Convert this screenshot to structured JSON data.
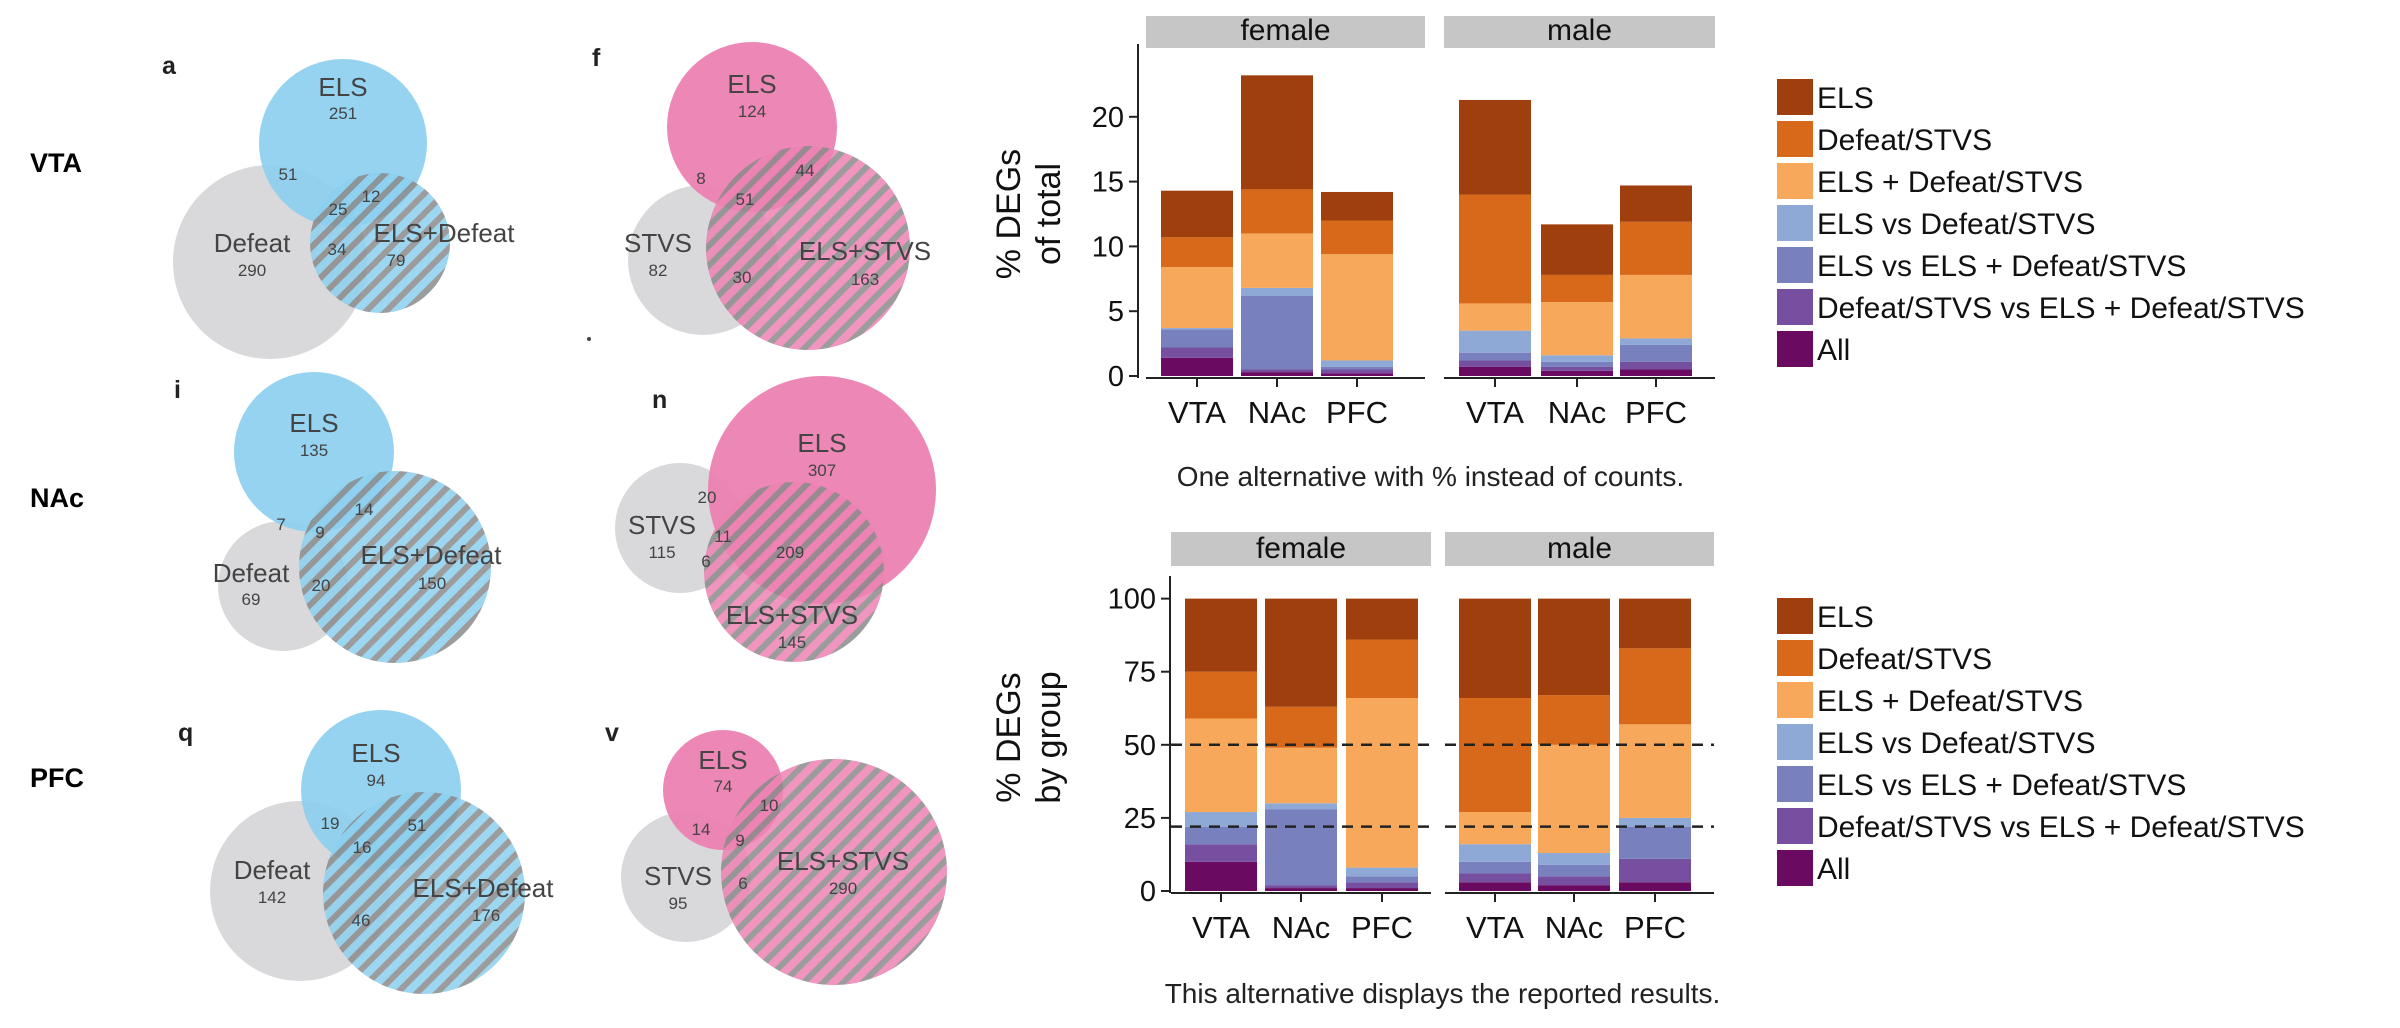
{
  "rows": [
    "VTA",
    "NAc",
    "PFC"
  ],
  "venn_panels": [
    {
      "letter": "a",
      "c1": "ELS",
      "c2": "Defeat",
      "c3": "ELS+Defeat",
      "n1": "251",
      "n2": "290",
      "n3": "79",
      "n12": "51",
      "n13": "12",
      "n23": "34",
      "n123": "25",
      "accent": "#8ccfef"
    },
    {
      "letter": "f",
      "c1": "ELS",
      "c2": "STVS",
      "c3": "ELS+STVS",
      "n1": "124",
      "n2": "82",
      "n3": "163",
      "n12": "8",
      "n13": "44",
      "n23": "30",
      "n123": "51",
      "accent": "#ec82b2"
    },
    {
      "letter": "i",
      "c1": "ELS",
      "c2": "Defeat",
      "c3": "ELS+Defeat",
      "n1": "135",
      "n2": "69",
      "n3": "150",
      "n12": "7",
      "n13": "14",
      "n23": "20",
      "n123": "9",
      "accent": "#8ccfef"
    },
    {
      "letter": "n",
      "c1": "ELS",
      "c2": "STVS",
      "c3": "ELS+STVS",
      "n1": "307",
      "n2": "115",
      "n3": "145",
      "n12": "20",
      "n13": "209",
      "n23": "6",
      "n123": "11",
      "accent": "#ec82b2"
    },
    {
      "letter": "q",
      "c1": "ELS",
      "c2": "Defeat",
      "c3": "ELS+Defeat",
      "n1": "94",
      "n2": "142",
      "n3": "176",
      "n12": "19",
      "n13": "51",
      "n23": "46",
      "n123": "16",
      "accent": "#8ccfef"
    },
    {
      "letter": "v",
      "c1": "ELS",
      "c2": "STVS",
      "c3": "ELS+STVS",
      "n1": "74",
      "n2": "95",
      "n3": "290",
      "n12": "14",
      "n13": "10",
      "n23": "6",
      "n123": "9",
      "accent": "#ec82b2"
    }
  ],
  "legend": {
    "items": [
      "ELS",
      "Defeat/STVS",
      "ELS + Defeat/STVS",
      "ELS vs Defeat/STVS",
      "ELS vs ELS + Defeat/STVS",
      "Defeat/STVS vs ELS + Defeat/STVS",
      "All"
    ],
    "colors": [
      "#9e3f0d",
      "#d8691a",
      "#f8a85a",
      "#8ea9d6",
      "#7880bd",
      "#764fa0",
      "#6a0a60"
    ]
  },
  "chart_data": [
    {
      "type": "bar",
      "stacked": true,
      "ylabel": "% DEGs of total",
      "ylim": [
        0,
        25
      ],
      "yticks": [
        0,
        5,
        10,
        15,
        20
      ],
      "facets": [
        "female",
        "male"
      ],
      "categories": [
        "VTA",
        "NAc",
        "PFC"
      ],
      "caption": "One alternative with % instead of counts.",
      "series_order": [
        "All",
        "Defeat/STVS vs ELS + Defeat/STVS",
        "ELS vs ELS + Defeat/STVS",
        "ELS vs Defeat/STVS",
        "ELS + Defeat/STVS",
        "Defeat/STVS",
        "ELS"
      ],
      "stacks": {
        "female": [
          [
            1.4,
            0.8,
            1.4,
            0.1,
            4.7,
            2.3,
            3.6
          ],
          [
            0.3,
            0.2,
            5.7,
            0.6,
            4.2,
            3.4,
            8.8
          ],
          [
            0.2,
            0.3,
            0.2,
            0.5,
            8.2,
            2.6,
            2.2
          ]
        ],
        "male": [
          [
            0.7,
            0.5,
            0.6,
            1.7,
            2.1,
            8.4,
            7.3
          ],
          [
            0.4,
            0.3,
            0.4,
            0.5,
            4.1,
            2.1,
            3.9
          ],
          [
            0.5,
            0.6,
            1.3,
            0.5,
            4.9,
            4.1,
            2.8
          ]
        ]
      },
      "ref_lines": []
    },
    {
      "type": "bar",
      "stacked": true,
      "ylabel": "% DEGs by group",
      "ylim": [
        0,
        105
      ],
      "yticks": [
        0,
        25,
        50,
        75,
        100
      ],
      "facets": [
        "female",
        "male"
      ],
      "categories": [
        "VTA",
        "NAc",
        "PFC"
      ],
      "caption": "This alternative displays the reported results.",
      "series_order": [
        "All",
        "Defeat/STVS vs ELS + Defeat/STVS",
        "ELS vs ELS + Defeat/STVS",
        "ELS vs Defeat/STVS",
        "ELS + Defeat/STVS",
        "Defeat/STVS",
        "ELS"
      ],
      "stacks": {
        "female": [
          [
            10,
            6,
            6,
            5,
            32,
            16,
            25
          ],
          [
            1,
            1,
            26,
            2,
            19,
            14,
            37
          ],
          [
            1,
            2,
            2,
            3,
            58,
            20,
            14
          ]
        ],
        "male": [
          [
            3,
            3,
            4,
            6,
            11,
            39,
            34
          ],
          [
            2,
            3,
            4,
            4,
            37,
            17,
            33
          ],
          [
            3,
            8,
            11,
            3,
            32,
            26,
            17
          ]
        ]
      },
      "ref_lines": [
        22,
        50
      ]
    }
  ]
}
